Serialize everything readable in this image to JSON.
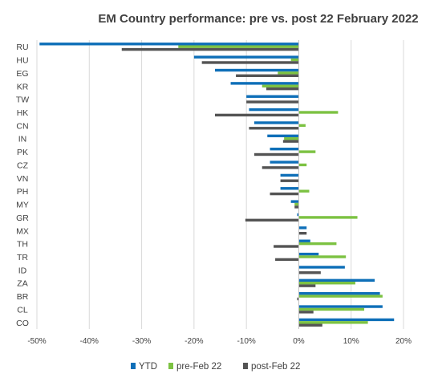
{
  "chart_data": {
    "type": "bar",
    "orientation": "horizontal",
    "title": "EM Country performance: pre vs. post 22 February 2022",
    "categories": [
      "RU",
      "HU",
      "EG",
      "KR",
      "TW",
      "HK",
      "CN",
      "IN",
      "PK",
      "CZ",
      "VN",
      "PH",
      "MY",
      "GR",
      "MX",
      "TH",
      "TR",
      "ID",
      "ZA",
      "BR",
      "CL",
      "CO"
    ],
    "series": [
      {
        "name": "YTD",
        "color": "#0e6fb8",
        "values": [
          -49.5,
          -20.0,
          -16.0,
          -13.0,
          -10.0,
          -9.5,
          -8.5,
          -6.0,
          -5.5,
          -5.5,
          -3.5,
          -3.5,
          -1.5,
          -0.3,
          1.5,
          2.2,
          3.8,
          8.8,
          14.5,
          15.5,
          16.0,
          18.2
        ]
      },
      {
        "name": "pre-Feb 22",
        "color": "#7cc242",
        "values": [
          -23.0,
          -1.5,
          -4.0,
          -7.0,
          0.0,
          7.5,
          1.3,
          -2.8,
          3.2,
          1.5,
          0.0,
          2.0,
          -0.8,
          11.2,
          0.0,
          7.2,
          9.0,
          0.0,
          10.8,
          16.0,
          12.5,
          13.2
        ]
      },
      {
        "name": "post-Feb 22",
        "color": "#545454",
        "values": [
          -33.8,
          -18.5,
          -12.0,
          -6.2,
          -10.0,
          -16.0,
          -9.5,
          -3.0,
          -8.5,
          -7.0,
          -3.5,
          -5.5,
          -0.8,
          -10.2,
          1.5,
          -4.8,
          -4.5,
          4.2,
          3.2,
          -0.3,
          2.8,
          4.5
        ]
      }
    ],
    "xlim": [
      -50,
      20
    ],
    "xticks": [
      "-50%",
      "-40%",
      "-30%",
      "-20%",
      "-10%",
      "0%",
      "10%",
      "20%"
    ],
    "xtick_values": [
      -50,
      -40,
      -30,
      -20,
      -10,
      0,
      10,
      20
    ],
    "grid": "vertical",
    "legend": "bottom"
  }
}
